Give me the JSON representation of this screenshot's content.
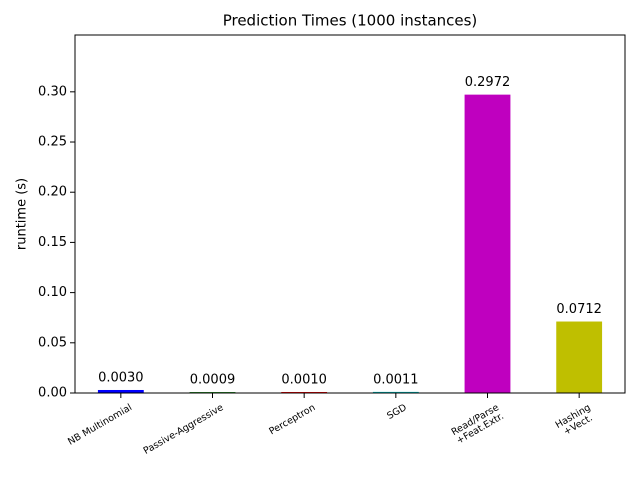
{
  "chart_data": {
    "type": "bar",
    "title": "Prediction Times (1000 instances)",
    "ylabel": "runtime (s)",
    "categories": [
      "NB Multinomial",
      "Passive-Aggressive",
      "Perceptron",
      "SGD",
      "Read/Parse\n+Feat.Extr.",
      "Hashing\n+Vect."
    ],
    "values": [
      0.003,
      0.0009,
      0.001,
      0.0011,
      0.2972,
      0.0712
    ],
    "value_labels": [
      "0.0030",
      "0.0009",
      "0.0010",
      "0.0011",
      "0.2972",
      "0.0712"
    ],
    "colors": [
      "#0000ff",
      "#008000",
      "#ff0000",
      "#00bfbf",
      "#bf00bf",
      "#bfbf00"
    ],
    "ylim": [
      0,
      0.3566
    ],
    "yticks": [
      {
        "value": 0,
        "label": "0.00"
      },
      {
        "value": 0.05,
        "label": "0.05"
      },
      {
        "value": 0.1,
        "label": "0.10"
      },
      {
        "value": 0.15,
        "label": "0.15"
      },
      {
        "value": 0.2,
        "label": "0.20"
      },
      {
        "value": 0.25,
        "label": "0.25"
      },
      {
        "value": 0.3,
        "label": "0.30"
      }
    ]
  }
}
